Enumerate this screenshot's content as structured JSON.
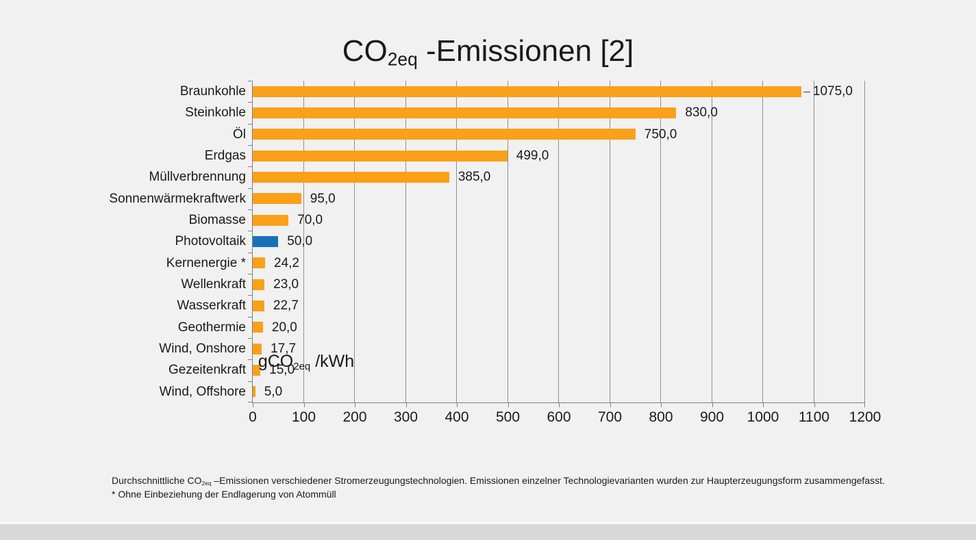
{
  "title": {
    "prefix": "CO",
    "subscript": "2eq",
    "suffix": " -Emissionen [2]"
  },
  "x_axis_title": {
    "prefix": "gCO",
    "subscript": "2eq",
    "suffix": " /kWh"
  },
  "footnote": {
    "line1_pre": "Durchschnittliche CO",
    "line1_sub": "2eq",
    "line1_post": " –Emissionen verschiedener Stromerzeugungstechnologien. Emissionen einzelner Technologievarianten wurden zur Haupterzeugungsform zusammengefasst.",
    "line2": "* Ohne Einbeziehung der Endlagerung von Atommüll"
  },
  "colors": {
    "background": "#f1f1f1",
    "bottom_strip": "#d8d8d8",
    "bar_orange": "#faa019",
    "bar_blue": "#1572b8",
    "axis_gray": "#7f7f7f",
    "grid_gray": "#8f8f8f"
  },
  "chart_data": {
    "type": "bar",
    "orientation": "horizontal",
    "title": "CO2eq-Emissionen [2]",
    "xlabel": "gCO2eq/kWh",
    "xlim": [
      0,
      1200
    ],
    "xticks": [
      0,
      100,
      200,
      300,
      400,
      500,
      600,
      700,
      800,
      900,
      1000,
      1100,
      1200
    ],
    "xtick_labels": [
      "0",
      "100",
      "200",
      "300",
      "400",
      "500",
      "600",
      "700",
      "800",
      "900",
      "1000",
      "1100",
      "1200"
    ],
    "grid": "vertical gridlines every 100, light gray, on",
    "legend": "none",
    "categories": [
      "Braunkohle",
      "Steinkohle",
      "Öl",
      "Erdgas",
      "Müllverbrennung",
      "Sonnenwärmekraftwerk",
      "Biomasse",
      "Photovoltaik",
      "Kernenergie *",
      "Wellenkraft",
      "Wasserkraft",
      "Geothermie",
      "Wind, Onshore",
      "Gezeitenkraft",
      "Wind, Offshore"
    ],
    "values": [
      1075.0,
      830.0,
      750.0,
      499.0,
      385.0,
      95.0,
      70.0,
      50.0,
      24.2,
      23.0,
      22.7,
      20.0,
      17.7,
      15.0,
      5.0
    ],
    "value_labels": [
      "1075,0",
      "830,0",
      "750,0",
      "499,0",
      "385,0",
      "95,0",
      "70,0",
      "50,0",
      "24,2",
      "23,0",
      "22,7",
      "20,0",
      "17,7",
      "15,0",
      "5,0"
    ],
    "bar_colors": [
      "#faa019",
      "#faa019",
      "#faa019",
      "#faa019",
      "#faa019",
      "#faa019",
      "#faa019",
      "#1572b8",
      "#faa019",
      "#faa019",
      "#faa019",
      "#faa019",
      "#faa019",
      "#faa019",
      "#faa019"
    ],
    "annotations": {
      "leader_line_category": "Braunkohle"
    }
  }
}
